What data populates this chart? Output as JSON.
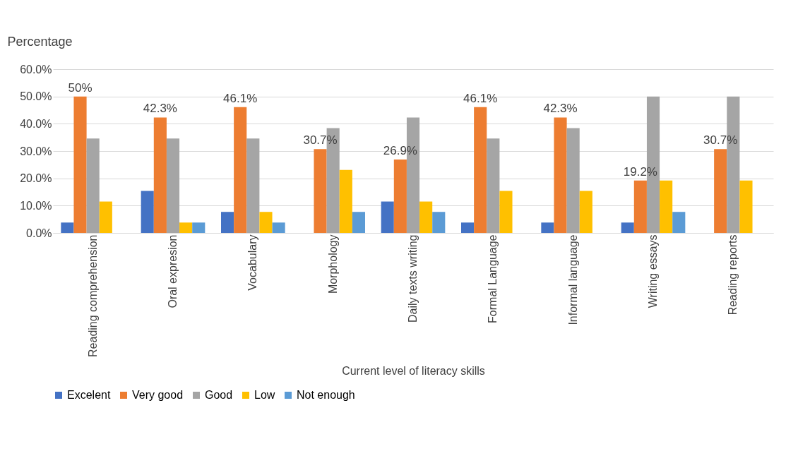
{
  "chart_data": {
    "type": "bar",
    "ylabel": "Percentage",
    "xlabel": "Current level of literacy skills",
    "categories": [
      "Reading comprehension",
      "Oral expresion",
      "Vocabulary",
      "Morphology",
      "Daily texts writing",
      "Formal Language",
      "Informal language",
      "Writing essays",
      "Reading reports"
    ],
    "series": [
      {
        "name": "Excelent",
        "color": "#4472c4",
        "values": [
          3.8,
          15.4,
          7.7,
          0,
          11.5,
          3.8,
          3.8,
          3.8,
          0
        ]
      },
      {
        "name": "Very good",
        "color": "#ed7d31",
        "values": [
          50,
          42.3,
          46.1,
          30.7,
          26.9,
          46.1,
          42.3,
          19.2,
          30.7
        ],
        "value_labels": [
          "50%",
          "42.3%",
          "46.1%",
          "30.7%",
          "26.9%",
          "46.1%",
          "42.3%",
          "19.2%",
          "30.7%"
        ]
      },
      {
        "name": "Good",
        "color": "#a5a5a5",
        "values": [
          34.6,
          34.6,
          34.6,
          38.4,
          42.3,
          34.6,
          38.4,
          50,
          50
        ]
      },
      {
        "name": "Low",
        "color": "#ffc000",
        "values": [
          11.5,
          3.8,
          7.7,
          23.1,
          11.5,
          15.4,
          15.4,
          19.2,
          19.2
        ]
      },
      {
        "name": "Not enough",
        "color": "#5b9bd5",
        "values": [
          0,
          3.8,
          3.8,
          7.7,
          7.7,
          0,
          0,
          7.7,
          0
        ]
      }
    ],
    "ylim": [
      0,
      60
    ],
    "yticks": [
      {
        "value": 0,
        "label": "0.0%"
      },
      {
        "value": 10,
        "label": "10.0%"
      },
      {
        "value": 20,
        "label": "20.0%"
      },
      {
        "value": 30,
        "label": "30.0%"
      },
      {
        "value": 40,
        "label": "40.0%"
      },
      {
        "value": 50,
        "label": "50.0%"
      },
      {
        "value": 60,
        "label": "60.0%"
      }
    ],
    "grid": "y",
    "legend": "bottom"
  }
}
